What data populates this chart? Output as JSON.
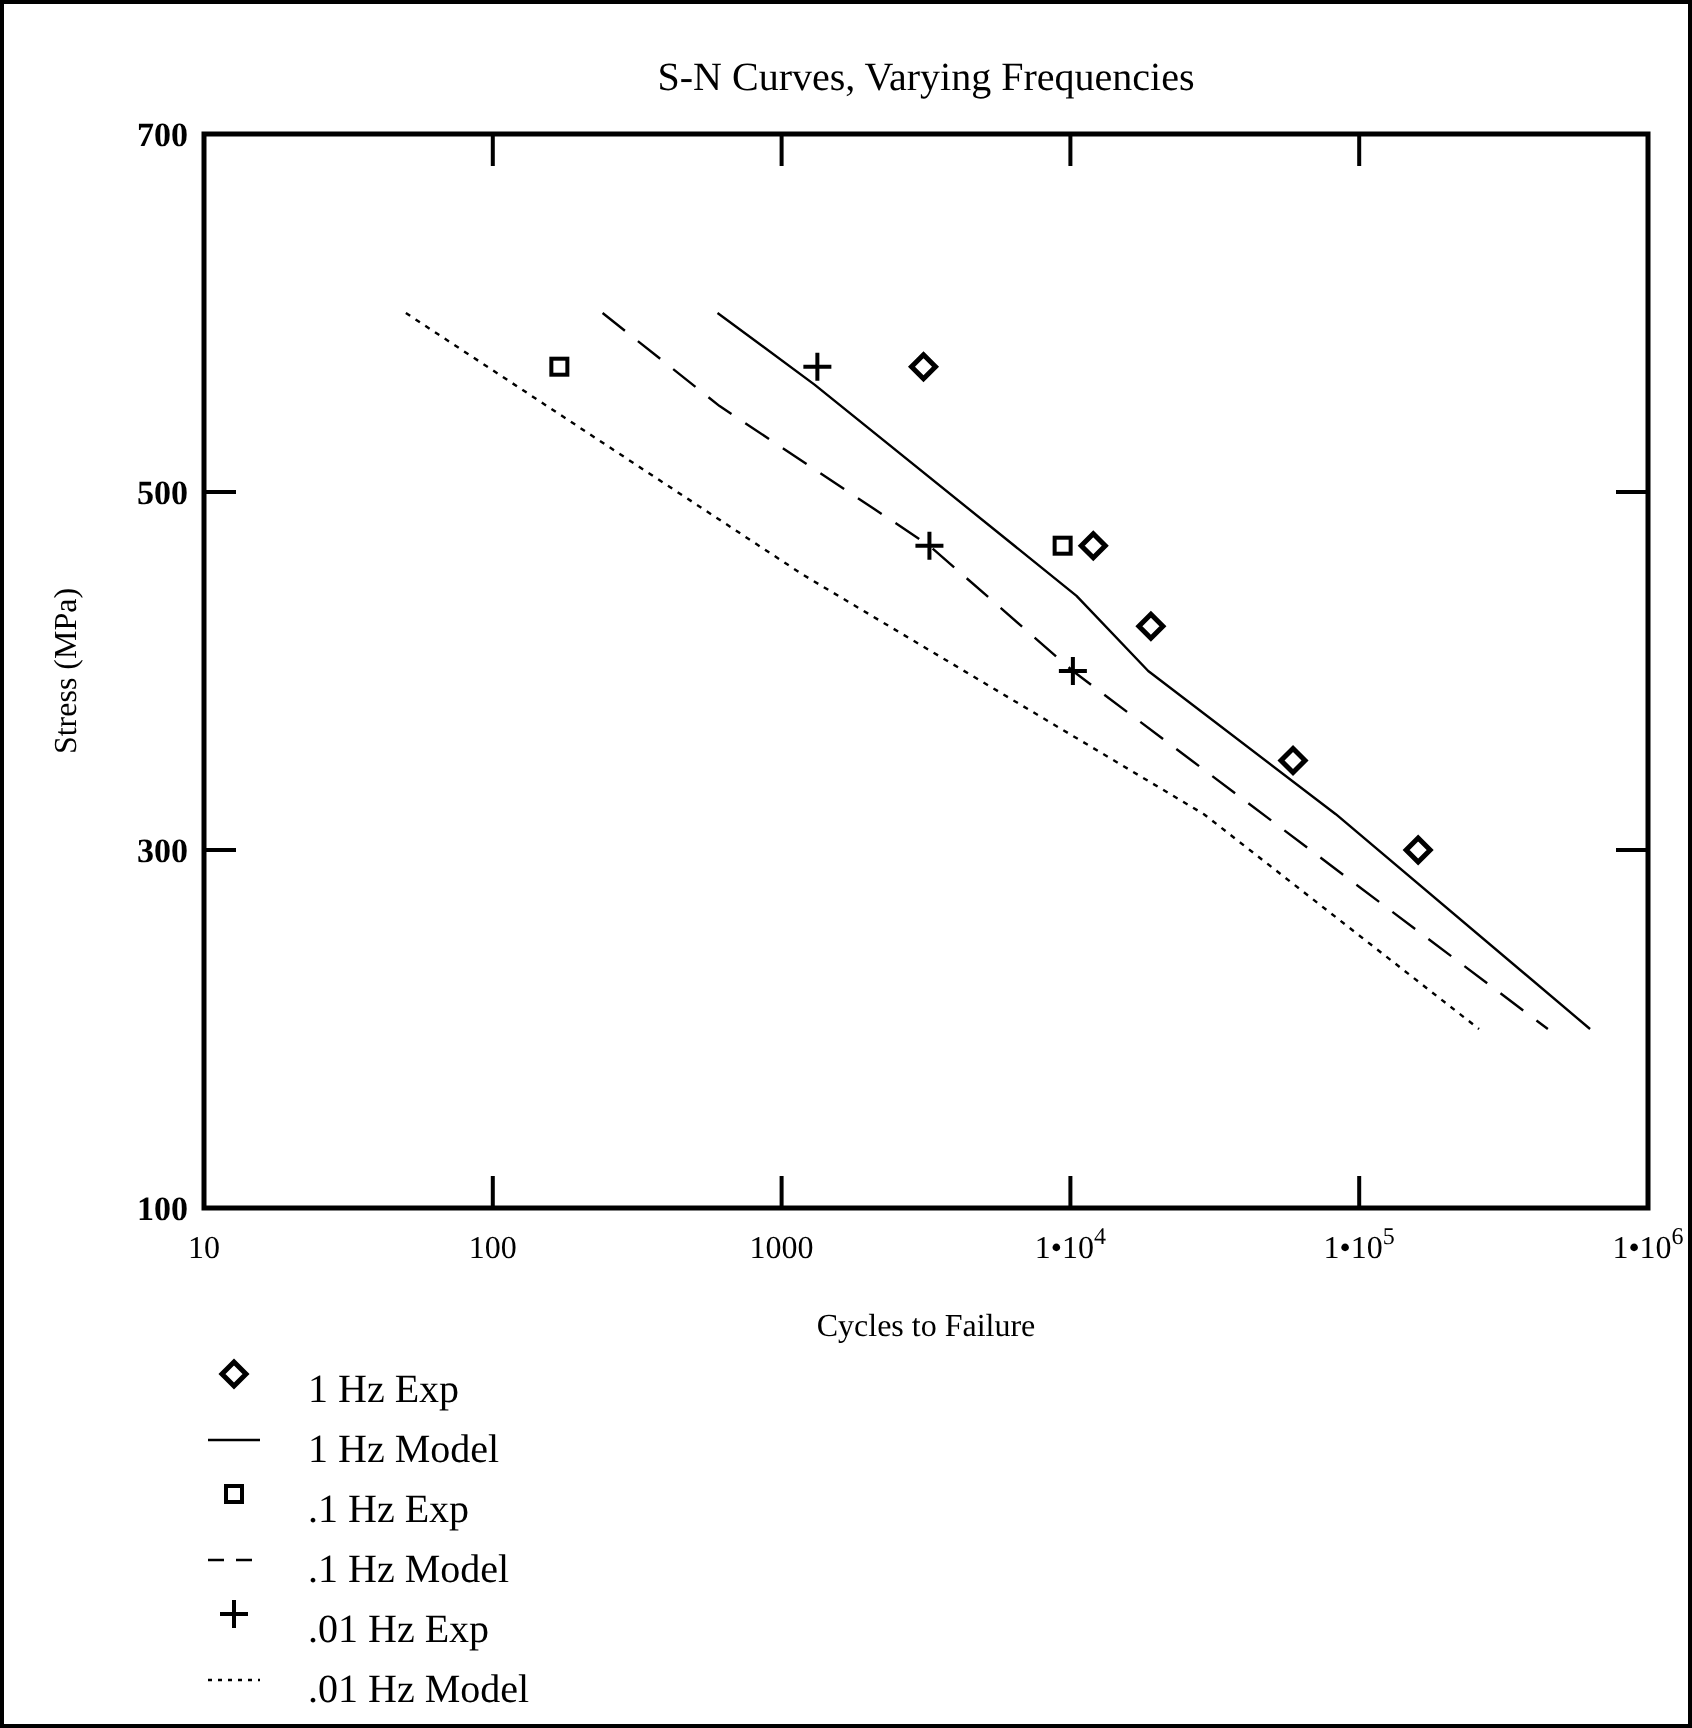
{
  "chart_data": {
    "type": "scatter",
    "title": "S-N Curves, Varying Frequencies",
    "xlabel": "Cycles to Failure",
    "ylabel": "Stress (MPa)",
    "log": "x",
    "xlim": [
      10,
      1000000
    ],
    "xticks": [
      10,
      100,
      1000,
      {
        "value": 10000,
        "label": "1•10$^{4}$"
      },
      {
        "value": 100000,
        "label": "1•10$^{5}$"
      },
      {
        "value": 1000000,
        "label": "1•10$^{6}$"
      }
    ],
    "ylim": [
      100,
      700
    ],
    "yticks": [
      100,
      300,
      500,
      700
    ],
    "grid": false,
    "legend": "bottom left",
    "series": [
      {
        "name": "1 Hz Exp",
        "marker": "diamond",
        "color": "#000000",
        "x": [
          3100,
          12000,
          19000,
          59000,
          160000
        ],
        "values": [
          570,
          470,
          425,
          350,
          300
        ]
      },
      {
        "name": "1 Hz Model",
        "type": "line",
        "line_style": "solid",
        "color": "#000000",
        "x": [
          600,
          1300,
          10500,
          18600,
          83000,
          630000
        ],
        "values": [
          600,
          560,
          442,
          400,
          320,
          200
        ]
      },
      {
        "name": ".1 Hz Exp",
        "marker": "square",
        "color": "#000000",
        "x": [
          170,
          9400
        ],
        "values": [
          570,
          470
        ]
      },
      {
        "name": ".1 Hz Model",
        "type": "line",
        "line_style": "dashed",
        "color": "#000000",
        "x": [
          240,
          610,
          3250,
          10200,
          450000
        ],
        "values": [
          600,
          548,
          470,
          400,
          200
        ]
      },
      {
        "name": ".01 Hz Exp",
        "marker": "cross",
        "color": "#000000",
        "x": [
          1330,
          3250,
          10200
        ],
        "values": [
          570,
          470,
          400
        ]
      },
      {
        "name": ".01 Hz Model",
        "type": "line",
        "line_style": "dotted",
        "color": "#000000",
        "x": [
          50,
          1180,
          29000,
          260000
        ],
        "values": [
          600,
          454,
          320,
          200
        ]
      }
    ]
  }
}
